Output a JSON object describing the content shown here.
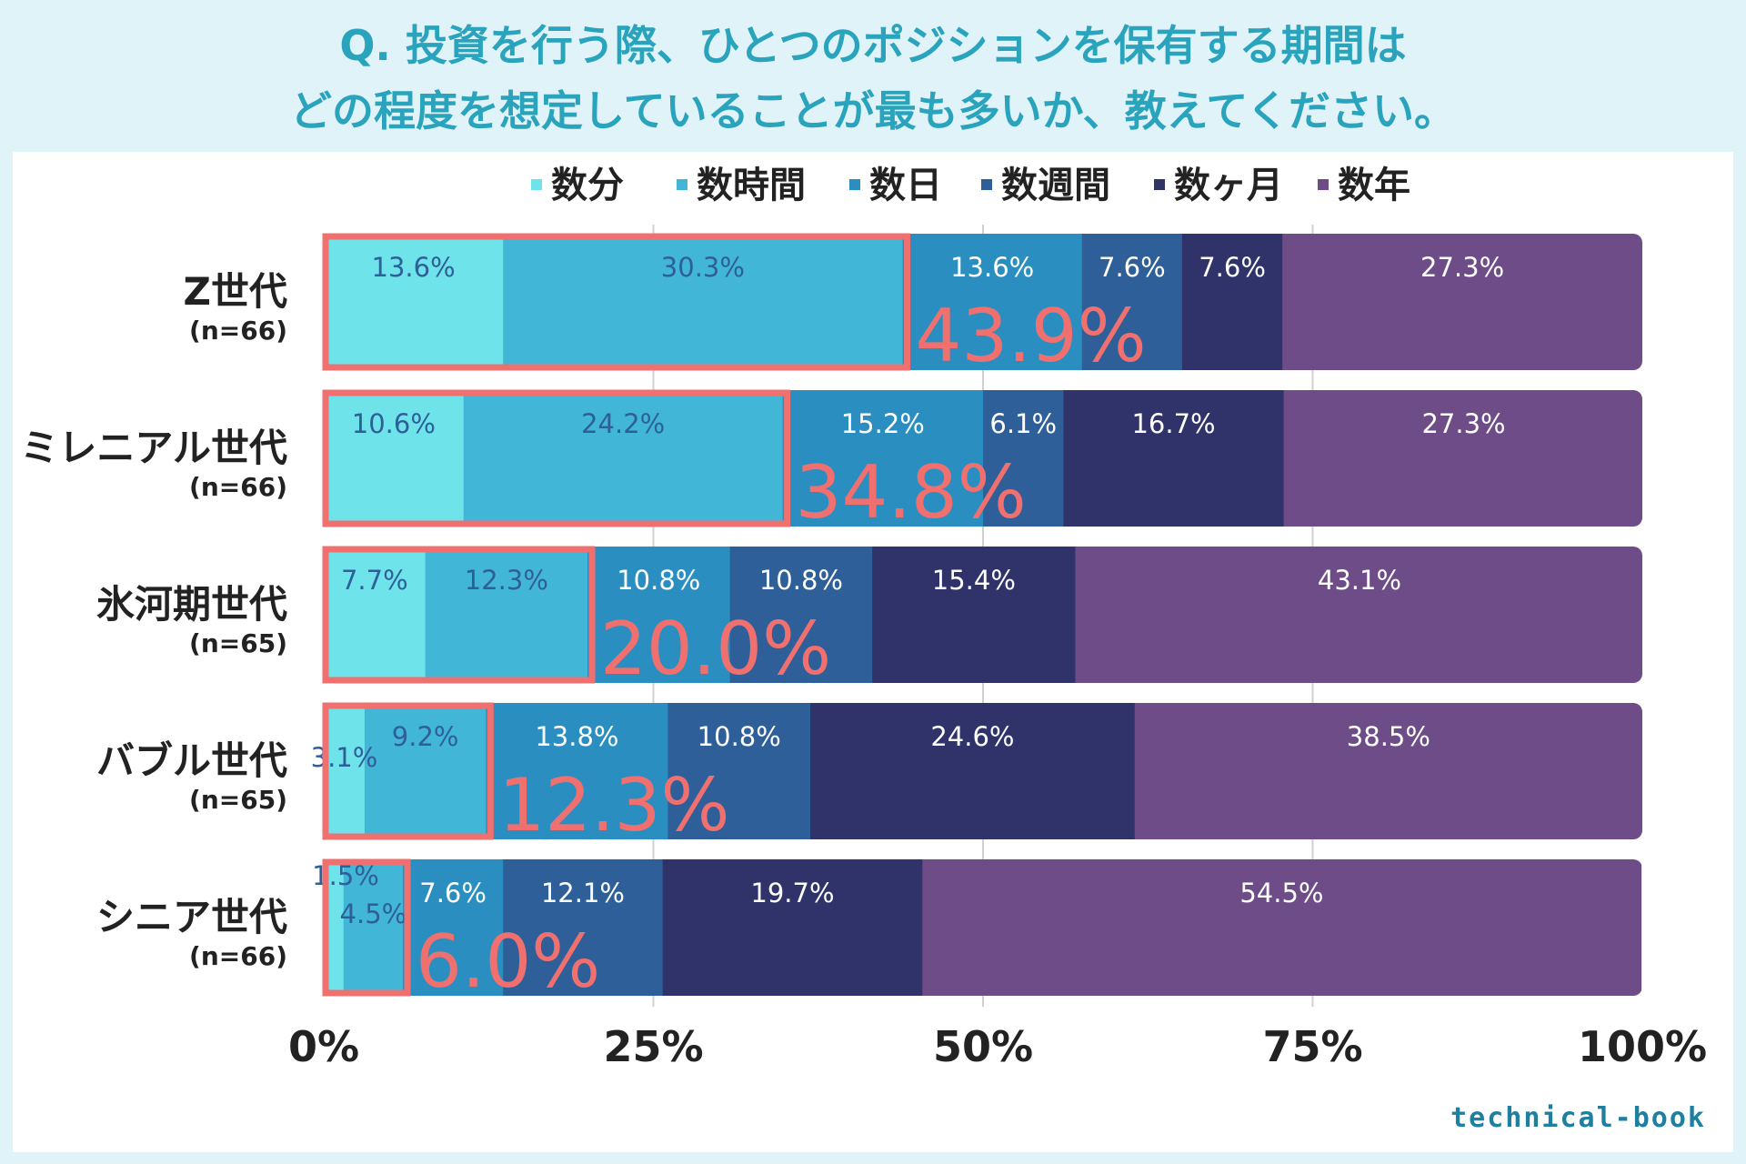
{
  "title_line1": "Q. 投資を行う際、ひとつのポジションを保有する期間は",
  "title_line2": "どの程度を想定していることが最も多いか、教えてください。",
  "brand": "technical-book",
  "chart_data": {
    "type": "bar",
    "orientation": "horizontal-stacked-100",
    "series_names": [
      "数分",
      "数時間",
      "数日",
      "数週間",
      "数ヶ月",
      "数年"
    ],
    "series_colors": [
      "#6ee4ea",
      "#42b6d6",
      "#2a8fc0",
      "#2e5f98",
      "#2f336a",
      "#6e4c88"
    ],
    "series_label_colors": [
      "#2e5f98",
      "#2e5f98",
      "#ffffff",
      "#ffffff",
      "#ffffff",
      "#ffffff"
    ],
    "categories": [
      {
        "name": "Z世代",
        "n": "(n=66)",
        "values": [
          13.6,
          30.3,
          13.6,
          7.6,
          7.6,
          27.3
        ],
        "labels": [
          "13.6%",
          "30.3%",
          "13.6%",
          "7.6%",
          "7.6%",
          "27.3%"
        ],
        "highlight": "43.9%"
      },
      {
        "name": "ミレニアル世代",
        "n": "(n=66)",
        "values": [
          10.6,
          24.2,
          15.2,
          6.1,
          16.7,
          27.3
        ],
        "labels": [
          "10.6%",
          "24.2%",
          "15.2%",
          "6.1%",
          "16.7%",
          "27.3%"
        ],
        "highlight": "34.8%"
      },
      {
        "name": "氷河期世代",
        "n": "(n=65)",
        "values": [
          7.7,
          12.3,
          10.8,
          10.8,
          15.4,
          43.1
        ],
        "labels": [
          "7.7%",
          "12.3%",
          "10.8%",
          "10.8%",
          "15.4%",
          "43.1%"
        ],
        "highlight": "20.0%"
      },
      {
        "name": "バブル世代",
        "n": "(n=65)",
        "values": [
          3.1,
          9.2,
          13.8,
          10.8,
          24.6,
          38.5
        ],
        "labels": [
          "3.1%",
          "9.2%",
          "13.8%",
          "10.8%",
          "24.6%",
          "38.5%"
        ],
        "highlight": "12.3%"
      },
      {
        "name": "シニア世代",
        "n": "(n=66)",
        "values": [
          1.5,
          4.5,
          7.6,
          12.1,
          19.7,
          54.5
        ],
        "labels": [
          "1.5%",
          "4.5%",
          "7.6%",
          "12.1%",
          "19.7%",
          "54.5%"
        ],
        "highlight": "6.0%"
      }
    ],
    "x_ticks": [
      "0%",
      "25%",
      "50%",
      "75%",
      "100%"
    ],
    "x_tick_values": [
      0,
      25,
      50,
      75,
      100
    ],
    "xlim": [
      0,
      100
    ],
    "highlight_color": "#f07070",
    "legend_position": "top"
  }
}
